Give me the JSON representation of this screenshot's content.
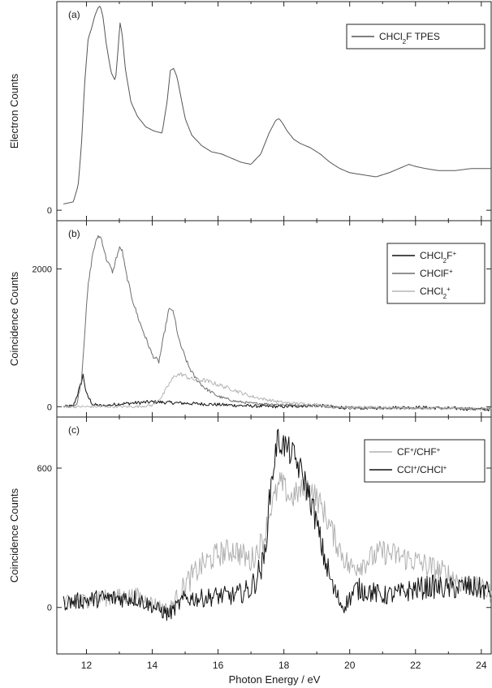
{
  "figure": {
    "xlabel": "Photon Energy / eV",
    "x_ticks": [
      12,
      14,
      16,
      18,
      20,
      22,
      24
    ]
  },
  "chart_data": [
    {
      "type": "line",
      "panel": "(a)",
      "ylabel": "Electron Counts",
      "xlim": [
        11.1,
        24.3
      ],
      "ylim": [
        -0.05,
        1.0
      ],
      "y_ticks": [
        0
      ],
      "y_tick_labels": [
        "0"
      ],
      "legend": "top-right",
      "series": [
        {
          "name": "CHCl₂F TPES",
          "label_parts": [
            "CHCl",
            "2",
            "F TPES"
          ],
          "label_style": [
            "",
            "sub",
            ""
          ],
          "color": "#555555",
          "x": [
            11.3,
            11.6,
            11.75,
            11.85,
            11.95,
            12.05,
            12.15,
            12.25,
            12.35,
            12.42,
            12.5,
            12.6,
            12.75,
            12.88,
            12.95,
            13.02,
            13.08,
            13.18,
            13.35,
            13.55,
            13.8,
            14.05,
            14.3,
            14.45,
            14.55,
            14.65,
            14.75,
            14.85,
            15.0,
            15.2,
            15.5,
            15.8,
            16.1,
            16.4,
            16.7,
            17.0,
            17.3,
            17.55,
            17.75,
            17.85,
            17.95,
            18.1,
            18.3,
            18.5,
            18.8,
            19.1,
            19.4,
            19.7,
            20.0,
            20.4,
            20.8,
            21.2,
            21.5,
            21.8,
            22.0,
            22.3,
            22.7,
            23.2,
            23.7,
            24.3
          ],
          "y": [
            0.03,
            0.04,
            0.12,
            0.32,
            0.62,
            0.82,
            0.87,
            0.93,
            0.97,
            0.98,
            0.93,
            0.8,
            0.66,
            0.62,
            0.75,
            0.9,
            0.85,
            0.68,
            0.52,
            0.45,
            0.4,
            0.38,
            0.37,
            0.52,
            0.67,
            0.68,
            0.64,
            0.56,
            0.44,
            0.36,
            0.31,
            0.28,
            0.27,
            0.25,
            0.23,
            0.22,
            0.27,
            0.37,
            0.43,
            0.44,
            0.42,
            0.38,
            0.34,
            0.32,
            0.3,
            0.27,
            0.23,
            0.2,
            0.18,
            0.17,
            0.16,
            0.18,
            0.2,
            0.22,
            0.21,
            0.2,
            0.19,
            0.19,
            0.2,
            0.2
          ]
        }
      ]
    },
    {
      "type": "line",
      "panel": "(b)",
      "ylabel": "Coincidence Counts",
      "xlim": [
        11.1,
        24.3
      ],
      "ylim": [
        -150,
        2700
      ],
      "y_ticks": [
        0,
        2000
      ],
      "y_tick_labels": [
        "0",
        "2000"
      ],
      "legend": "top-right",
      "series": [
        {
          "name": "CHCl₂F⁺",
          "label_parts": [
            "CHCl",
            "2",
            "F",
            "+"
          ],
          "label_style": [
            "",
            "sub",
            "",
            "sup"
          ],
          "color": "#111111",
          "noise": 45,
          "x": [
            11.3,
            11.6,
            11.8,
            11.9,
            12.0,
            12.2,
            12.5,
            13.0,
            14.0,
            15.0,
            16.0,
            17.0,
            18.0,
            19.0,
            20.0,
            22.0,
            24.3
          ],
          "y": [
            0,
            10,
            280,
            460,
            180,
            30,
            10,
            40,
            70,
            50,
            30,
            10,
            0,
            20,
            -20,
            -10,
            -40
          ]
        },
        {
          "name": "CHClF⁺",
          "label_parts": [
            "CHClF",
            "+"
          ],
          "label_style": [
            "",
            "sup"
          ],
          "color": "#6e6e6e",
          "noise": 30,
          "x": [
            11.3,
            11.7,
            11.85,
            11.95,
            12.05,
            12.2,
            12.35,
            12.45,
            12.6,
            12.8,
            12.9,
            13.0,
            13.08,
            13.2,
            13.4,
            13.6,
            13.8,
            14.0,
            14.2,
            14.4,
            14.5,
            14.6,
            14.7,
            14.8,
            14.95,
            15.1,
            15.3,
            15.6,
            16.0,
            16.5,
            17.0,
            18.0,
            19.0,
            20.0,
            22.0,
            24.3
          ],
          "y": [
            0,
            20,
            400,
            1100,
            1750,
            2250,
            2480,
            2450,
            2150,
            1950,
            2150,
            2300,
            2280,
            1950,
            1550,
            1250,
            1000,
            750,
            650,
            1150,
            1400,
            1420,
            1250,
            980,
            780,
            590,
            420,
            270,
            150,
            80,
            50,
            30,
            10,
            -20,
            -20,
            -30
          ]
        },
        {
          "name": "CHCl₂⁺",
          "label_parts": [
            "CHCl",
            "2",
            "+"
          ],
          "label_style": [
            "",
            "sub",
            "sup"
          ],
          "color": "#b5b5b5",
          "noise": 35,
          "x": [
            11.3,
            13.5,
            14.0,
            14.3,
            14.5,
            14.7,
            14.9,
            15.2,
            15.6,
            16.0,
            16.5,
            17.0,
            17.5,
            18.0,
            19.0,
            20.0,
            22.0,
            24.3
          ],
          "y": [
            0,
            0,
            20,
            150,
            320,
            460,
            470,
            400,
            380,
            320,
            240,
            150,
            100,
            60,
            30,
            -10,
            -20,
            -30
          ]
        }
      ]
    },
    {
      "type": "line",
      "panel": "(c)",
      "ylabel": "Coincidence Counts",
      "xlim": [
        11.1,
        24.3
      ],
      "ylim": [
        -200,
        820
      ],
      "y_ticks": [
        0,
        600
      ],
      "y_tick_labels": [
        "0",
        "600"
      ],
      "legend": "top-right",
      "series": [
        {
          "name": "CF⁺/CHF⁺",
          "label_parts": [
            "CF",
            "+",
            "/CHF",
            "+"
          ],
          "label_style": [
            "",
            "sup",
            "",
            "sup"
          ],
          "color": "#b0b0b0",
          "noise": 55,
          "x": [
            11.3,
            12.5,
            13.5,
            14.5,
            15.0,
            15.5,
            16.0,
            16.5,
            17.0,
            17.4,
            17.6,
            17.9,
            18.2,
            18.5,
            18.8,
            19.2,
            19.6,
            20.0,
            20.5,
            21.0,
            21.5,
            22.0,
            22.5,
            23.0,
            23.5,
            24.0,
            24.3
          ],
          "y": [
            20,
            40,
            50,
            -10,
            100,
            180,
            230,
            250,
            200,
            300,
            430,
            540,
            470,
            500,
            520,
            420,
            280,
            170,
            200,
            240,
            220,
            200,
            170,
            140,
            100,
            80,
            60
          ]
        },
        {
          "name": "CCl⁺/CHCl⁺",
          "label_parts": [
            "CCl",
            "+",
            "/CHCl",
            "+"
          ],
          "label_style": [
            "",
            "sup",
            "",
            "sup"
          ],
          "color": "#111111",
          "noise": 60,
          "x": [
            11.3,
            12.5,
            13.5,
            14.5,
            15.0,
            15.5,
            16.0,
            16.5,
            17.0,
            17.4,
            17.6,
            17.8,
            18.0,
            18.3,
            18.6,
            18.9,
            19.2,
            19.5,
            19.8,
            20.2,
            20.6,
            21.0,
            21.5,
            22.0,
            22.5,
            23.0,
            23.5,
            24.0,
            24.3
          ],
          "y": [
            20,
            40,
            40,
            -30,
            40,
            40,
            50,
            50,
            80,
            200,
            520,
            720,
            700,
            650,
            560,
            420,
            230,
            80,
            0,
            80,
            70,
            50,
            60,
            80,
            90,
            80,
            90,
            80,
            70
          ]
        }
      ]
    }
  ]
}
